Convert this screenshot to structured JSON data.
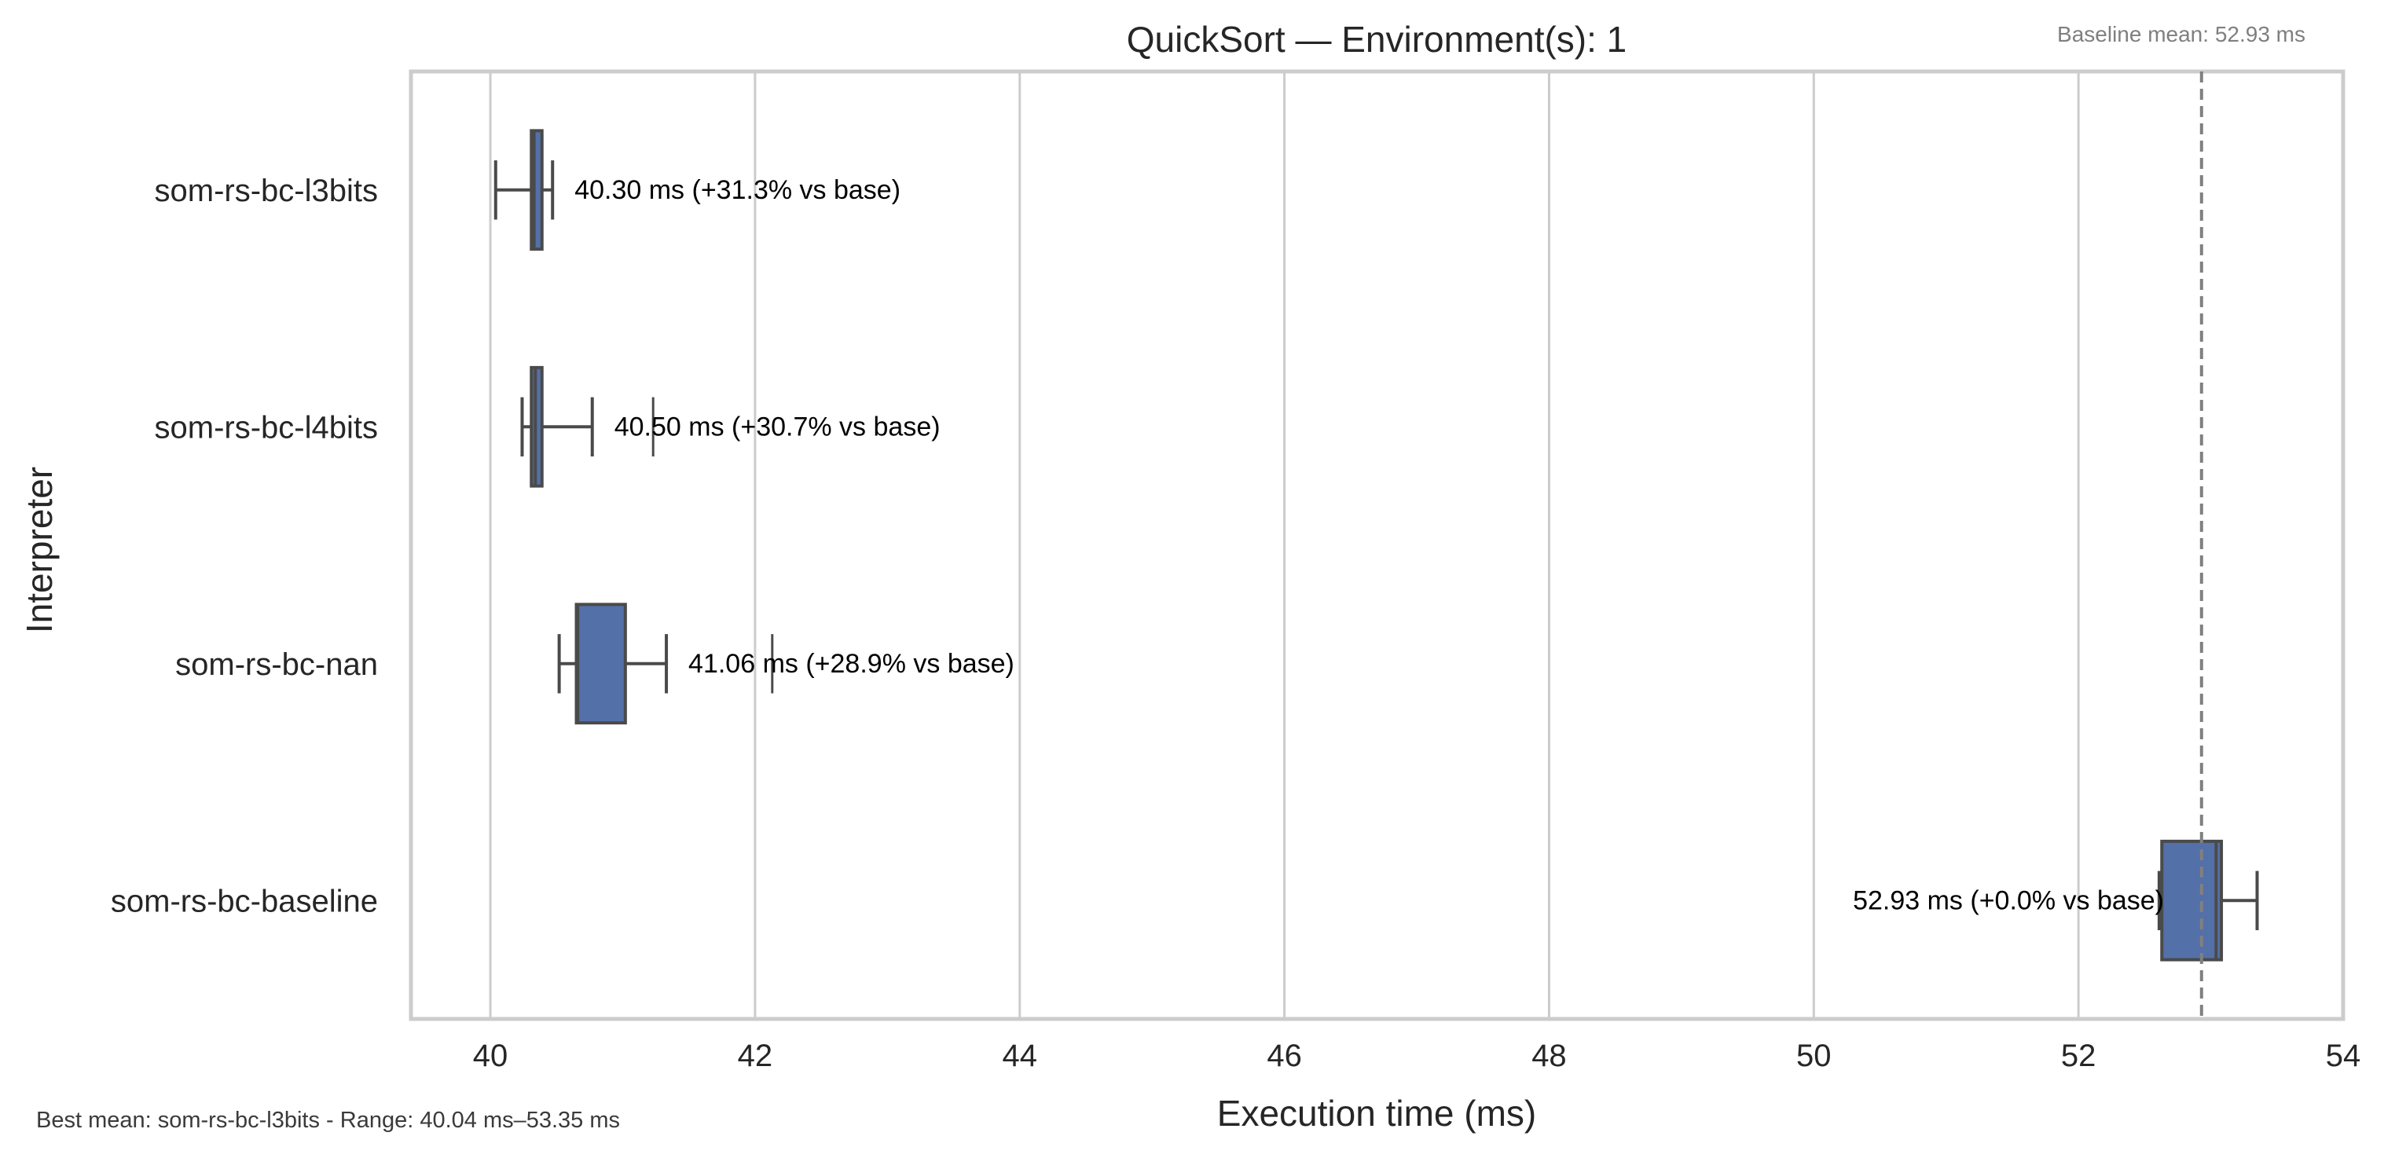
{
  "chart_data": {
    "type": "box",
    "orientation": "horizontal",
    "title": "QuickSort — Environment(s): 1",
    "xlabel": "Execution time (ms)",
    "ylabel": "Interpreter",
    "xlim": [
      39.4,
      54
    ],
    "xticks": [
      40,
      42,
      44,
      46,
      48,
      50,
      52,
      54
    ],
    "grid": "vertical",
    "box_color": "#5470a8",
    "reference_line": {
      "value": 52.93,
      "style": "dashed",
      "color": "#808080"
    },
    "baseline_label": "Baseline mean: 52.93 ms",
    "footer": "Best mean: som-rs-bc-l3bits - Range: 40.04 ms–53.35 ms",
    "categories": [
      "som-rs-bc-l3bits",
      "som-rs-bc-l4bits",
      "som-rs-bc-nan",
      "som-rs-bc-baseline"
    ],
    "boxes": [
      {
        "name": "som-rs-bc-l3bits",
        "whisker_low": 40.04,
        "q1": 40.31,
        "median": 40.33,
        "q3": 40.39,
        "whisker_high": 40.47,
        "outliers": [],
        "mean": 40.3,
        "annotation": "40.30 ms  (+31.3% vs base)"
      },
      {
        "name": "som-rs-bc-l4bits",
        "whisker_low": 40.24,
        "q1": 40.31,
        "median": 40.34,
        "q3": 40.39,
        "whisker_high": 40.77,
        "outliers": [
          41.23
        ],
        "mean": 40.5,
        "annotation": "40.50 ms  (+30.7% vs base)"
      },
      {
        "name": "som-rs-bc-nan",
        "whisker_low": 40.52,
        "q1": 40.65,
        "median": 40.66,
        "q3": 41.02,
        "whisker_high": 41.33,
        "outliers": [
          42.13
        ],
        "mean": 41.06,
        "annotation": "41.06 ms  (+28.9% vs base)"
      },
      {
        "name": "som-rs-bc-baseline",
        "whisker_low": 52.61,
        "q1": 52.63,
        "median": 53.04,
        "q3": 53.08,
        "whisker_high": 53.35,
        "outliers": [],
        "mean": 52.93,
        "annotation": "52.93 ms  (+0.0% vs base)"
      }
    ]
  }
}
